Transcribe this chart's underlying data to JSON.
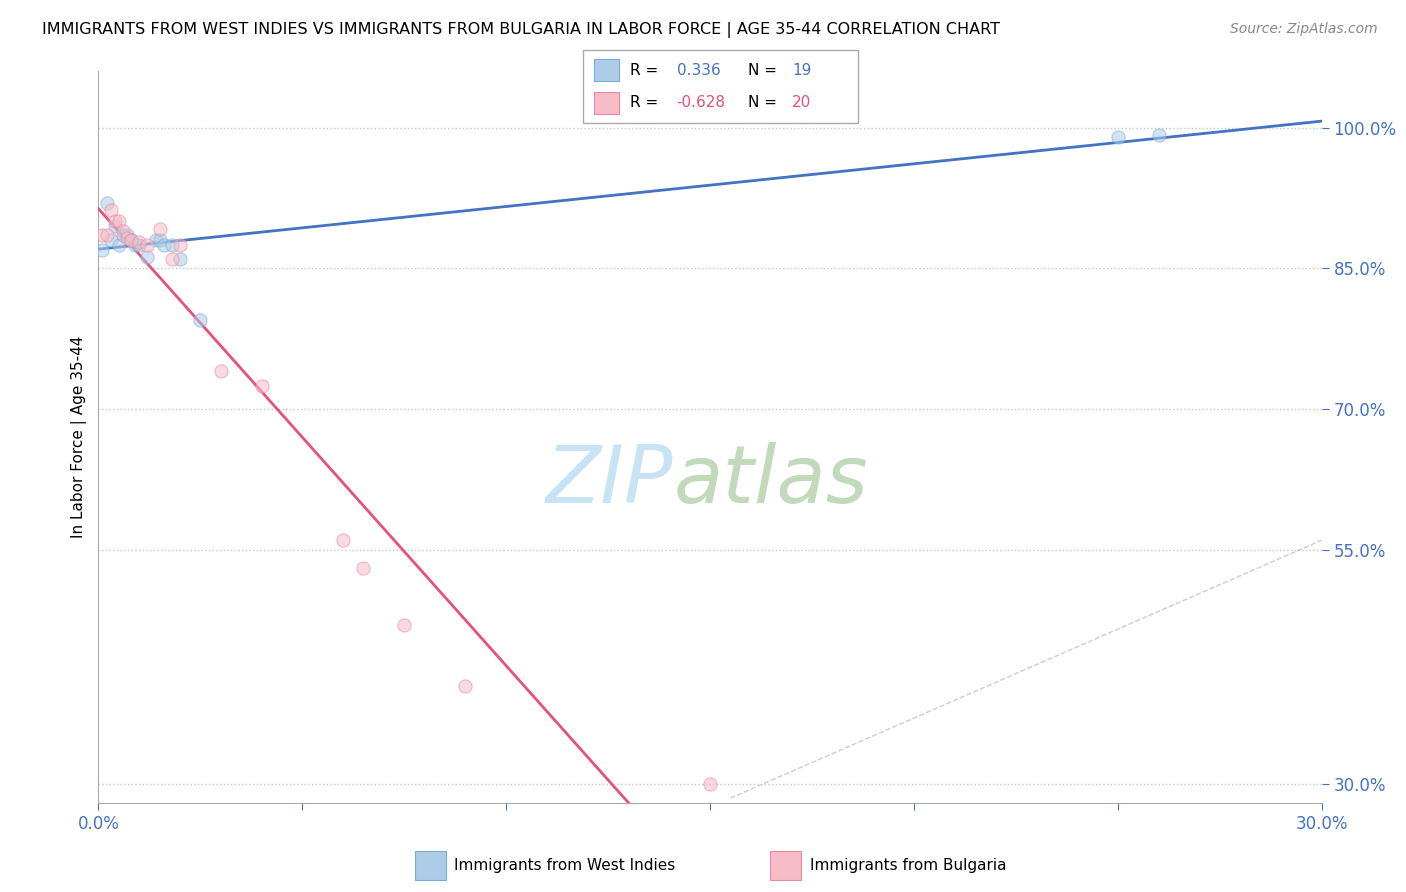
{
  "title": "IMMIGRANTS FROM WEST INDIES VS IMMIGRANTS FROM BULGARIA IN LABOR FORCE | AGE 35-44 CORRELATION CHART",
  "source": "Source: ZipAtlas.com",
  "ylabel": "In Labor Force | Age 35-44",
  "xlim": [
    0.0,
    0.3
  ],
  "ylim": [
    0.28,
    1.06
  ],
  "xticks": [
    0.0,
    0.05,
    0.1,
    0.15,
    0.2,
    0.25,
    0.3
  ],
  "xtick_labels": [
    "0.0%",
    "",
    "",
    "",
    "",
    "",
    "30.0%"
  ],
  "yticks_right": [
    1.0,
    0.85,
    0.7,
    0.55,
    0.3
  ],
  "ytick_labels_right": [
    "100.0%",
    "85.0%",
    "70.0%",
    "55.0%",
    "30.0%"
  ],
  "west_indies_x": [
    0.001,
    0.002,
    0.003,
    0.004,
    0.005,
    0.006,
    0.007,
    0.008,
    0.009,
    0.01,
    0.012,
    0.014,
    0.015,
    0.016,
    0.018,
    0.02,
    0.025,
    0.25,
    0.26
  ],
  "west_indies_y": [
    0.87,
    0.92,
    0.88,
    0.895,
    0.875,
    0.885,
    0.885,
    0.88,
    0.875,
    0.875,
    0.862,
    0.88,
    0.88,
    0.875,
    0.875,
    0.86,
    0.795,
    0.99,
    0.992
  ],
  "bulgaria_x": [
    0.001,
    0.002,
    0.003,
    0.004,
    0.005,
    0.006,
    0.007,
    0.008,
    0.01,
    0.012,
    0.015,
    0.018,
    0.02,
    0.03,
    0.04,
    0.06,
    0.065,
    0.075,
    0.09,
    0.15
  ],
  "bulgaria_y": [
    0.885,
    0.885,
    0.912,
    0.9,
    0.9,
    0.89,
    0.882,
    0.88,
    0.878,
    0.875,
    0.892,
    0.86,
    0.875,
    0.74,
    0.725,
    0.56,
    0.53,
    0.47,
    0.405,
    0.3
  ],
  "wi_R": 0.336,
  "wi_N": 19,
  "bg_R": -0.628,
  "bg_N": 20,
  "wi_color": "#aecce8",
  "bg_color": "#f5bcc8",
  "wi_edge_color": "#7aadd4",
  "bg_edge_color": "#e888a0",
  "wi_line_color": "#4472c4",
  "bg_line_color": "#e8507a",
  "dot_size": 90,
  "dot_alpha": 0.55,
  "grid_color": "#c8c8c8",
  "axis_color": "#4472c4",
  "bg_line_xmax": 0.3
}
